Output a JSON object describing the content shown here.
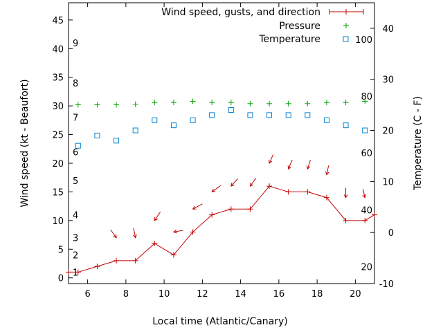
{
  "chart_data": {
    "type": "line",
    "xlabel": "Local time (Atlantic/Canary)",
    "ylabel_left": "Wind speed (kt - Beaufort)",
    "ylabel_right": "Temperature (C - F)",
    "xlim": [
      5,
      21
    ],
    "ylim_left": [
      -1,
      48
    ],
    "ylim_right": [
      -10,
      45
    ],
    "x_ticks": [
      6,
      8,
      10,
      12,
      14,
      16,
      18,
      20
    ],
    "y_ticks_left": [
      0,
      5,
      10,
      15,
      20,
      25,
      30,
      35,
      40,
      45
    ],
    "y_ticks_right": [
      -10,
      0,
      10,
      20,
      30,
      40
    ],
    "beaufort_labels": [
      {
        "text": "1",
        "kt": 1
      },
      {
        "text": "2",
        "kt": 4
      },
      {
        "text": "3",
        "kt": 7
      },
      {
        "text": "4",
        "kt": 11
      },
      {
        "text": "5",
        "kt": 17
      },
      {
        "text": "6",
        "kt": 22
      },
      {
        "text": "7",
        "kt": 28
      },
      {
        "text": "8",
        "kt": 34
      },
      {
        "text": "9",
        "kt": 41
      }
    ],
    "fahrenheit_labels": [
      {
        "text": "20",
        "c": -6.7
      },
      {
        "text": "40",
        "c": 4.4
      },
      {
        "text": "60",
        "c": 15.6
      },
      {
        "text": "80",
        "c": 26.7
      },
      {
        "text": "100",
        "c": 37.8
      }
    ],
    "legend": {
      "position": "top-right",
      "entries": [
        "Wind speed, gusts, and direction",
        "Pressure",
        "Temperature"
      ]
    },
    "colors": {
      "wind": "#c00000",
      "pressure": "#00a000",
      "temperature": "#0080d0"
    },
    "series": [
      {
        "name": "Wind speed, gusts, and direction",
        "axis": "left",
        "style": "line-plus",
        "x": [
          5.0,
          5.5,
          6.5,
          7.5,
          8.5,
          9.5,
          10.5,
          11.5,
          12.5,
          13.5,
          14.5,
          15.5,
          16.5,
          17.5,
          18.5,
          19.5,
          20.5,
          21.0
        ],
        "y": [
          1,
          1,
          2,
          3,
          3,
          6,
          4,
          8,
          11,
          12,
          12,
          16,
          15,
          15,
          14,
          10,
          10,
          11
        ]
      },
      {
        "name": "Pressure",
        "axis": "left",
        "style": "plus",
        "x": [
          5.5,
          6.5,
          7.5,
          8.5,
          9.5,
          10.5,
          11.5,
          12.5,
          13.5,
          14.5,
          15.5,
          16.5,
          17.5,
          18.5,
          19.5,
          20.5
        ],
        "y": [
          30.2,
          30.2,
          30.2,
          30.3,
          30.6,
          30.6,
          30.8,
          30.6,
          30.6,
          30.4,
          30.4,
          30.4,
          30.4,
          30.6,
          30.6,
          30.8
        ]
      },
      {
        "name": "Temperature",
        "axis": "right",
        "style": "square",
        "x": [
          5.5,
          6.5,
          7.5,
          8.5,
          9.5,
          10.5,
          11.5,
          12.5,
          13.5,
          14.5,
          15.5,
          16.5,
          17.5,
          18.5,
          19.5,
          20.5
        ],
        "y": [
          17,
          19,
          18,
          20,
          22,
          21,
          22,
          23,
          24,
          23,
          23,
          23,
          23,
          22,
          21,
          20
        ]
      }
    ],
    "wind_direction_arrows": [
      {
        "x": 7.5,
        "kt": 7,
        "dx": 0.3,
        "dy": -1.4
      },
      {
        "x": 8.5,
        "kt": 7,
        "dx": 0.1,
        "dy": -1.7
      },
      {
        "x": 9.5,
        "kt": 10,
        "dx": -0.3,
        "dy": -1.5
      },
      {
        "x": 10.5,
        "kt": 8,
        "dx": -0.5,
        "dy": -0.3
      },
      {
        "x": 11.5,
        "kt": 12,
        "dx": -0.5,
        "dy": -0.9
      },
      {
        "x": 12.5,
        "kt": 15,
        "dx": -0.45,
        "dy": -1.1
      },
      {
        "x": 13.5,
        "kt": 16,
        "dx": -0.35,
        "dy": -1.3
      },
      {
        "x": 14.5,
        "kt": 16,
        "dx": -0.3,
        "dy": -1.4
      },
      {
        "x": 15.5,
        "kt": 20,
        "dx": -0.2,
        "dy": -1.5
      },
      {
        "x": 16.5,
        "kt": 19,
        "dx": -0.2,
        "dy": -1.6
      },
      {
        "x": 17.5,
        "kt": 19,
        "dx": -0.15,
        "dy": -1.6
      },
      {
        "x": 18.5,
        "kt": 18,
        "dx": -0.1,
        "dy": -1.6
      },
      {
        "x": 19.5,
        "kt": 14,
        "dx": 0.0,
        "dy": -1.7
      },
      {
        "x": 20.5,
        "kt": 14,
        "dx": 0.1,
        "dy": -1.5
      }
    ]
  }
}
